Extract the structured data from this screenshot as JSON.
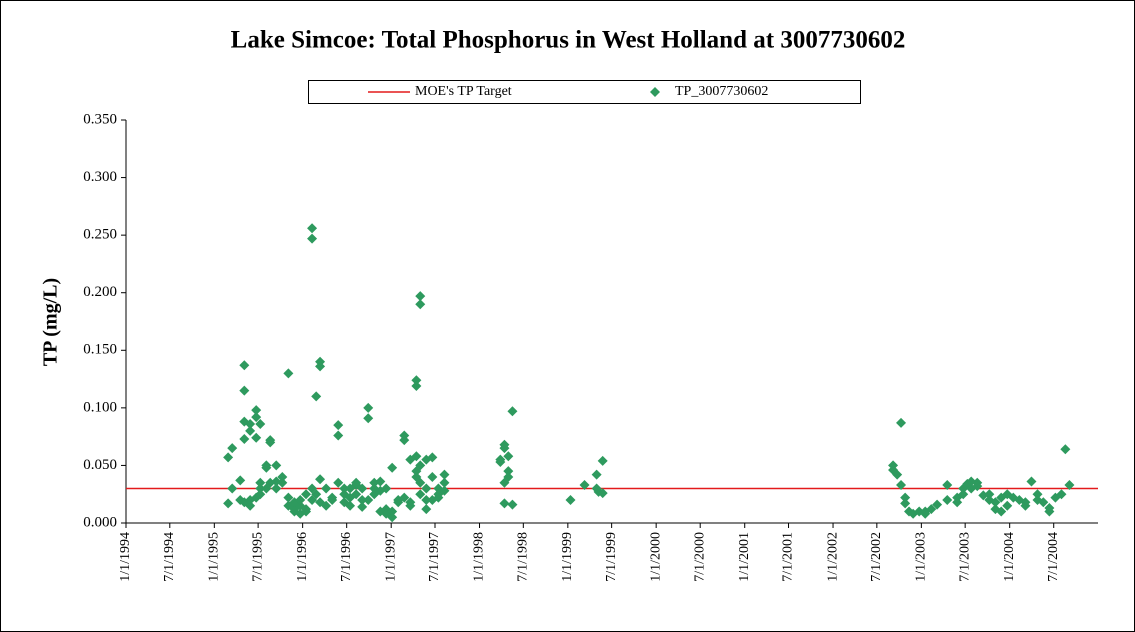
{
  "chart_data": {
    "type": "scatter",
    "title": "Lake Simcoe: Total Phosphorus in West Holland at 3007730602",
    "ylabel": "TP (mg/L)",
    "xlim": [
      "1994-01-01",
      "2004-12-31"
    ],
    "xticks": [
      {
        "value": "1994-01-01",
        "label": "1/1/1994"
      },
      {
        "value": "1994-07-01",
        "label": "7/1/1994"
      },
      {
        "value": "1995-01-01",
        "label": "1/1/1995"
      },
      {
        "value": "1995-07-01",
        "label": "7/1/1995"
      },
      {
        "value": "1996-01-01",
        "label": "1/1/1996"
      },
      {
        "value": "1996-07-01",
        "label": "7/1/1996"
      },
      {
        "value": "1997-01-01",
        "label": "1/1/1997"
      },
      {
        "value": "1997-07-01",
        "label": "7/1/1997"
      },
      {
        "value": "1998-01-01",
        "label": "1/1/1998"
      },
      {
        "value": "1998-07-01",
        "label": "7/1/1998"
      },
      {
        "value": "1999-01-01",
        "label": "1/1/1999"
      },
      {
        "value": "1999-07-01",
        "label": "7/1/1999"
      },
      {
        "value": "2000-01-01",
        "label": "1/1/2000"
      },
      {
        "value": "2000-07-01",
        "label": "7/1/2000"
      },
      {
        "value": "2001-01-01",
        "label": "1/1/2001"
      },
      {
        "value": "2001-07-01",
        "label": "7/1/2001"
      },
      {
        "value": "2002-01-01",
        "label": "1/1/2002"
      },
      {
        "value": "2002-07-01",
        "label": "7/1/2002"
      },
      {
        "value": "2003-01-01",
        "label": "1/1/2003"
      },
      {
        "value": "2003-07-01",
        "label": "7/1/2003"
      },
      {
        "value": "2004-01-01",
        "label": "1/1/2004"
      },
      {
        "value": "2004-07-01",
        "label": "7/1/2004"
      }
    ],
    "ylim": [
      0,
      0.35
    ],
    "yticks": [
      {
        "value": 0,
        "label": "0.000"
      },
      {
        "value": 0.05,
        "label": "0.050"
      },
      {
        "value": 0.1,
        "label": "0.100"
      },
      {
        "value": 0.15,
        "label": "0.150"
      },
      {
        "value": 0.2,
        "label": "0.200"
      },
      {
        "value": 0.25,
        "label": "0.250"
      },
      {
        "value": 0.3,
        "label": "0.300"
      },
      {
        "value": 0.35,
        "label": "0.350"
      }
    ],
    "reference_line": {
      "name": "MOE's TP Target",
      "color": "#e31a1c",
      "value": 0.03
    },
    "series": [
      {
        "name": "TP_3007730602",
        "color": "#2e9a5e",
        "x": [
          "1995-02-27",
          "1995-02-27",
          "1995-03-16",
          "1995-03-16",
          "1995-04-18",
          "1995-04-18",
          "1995-05-05",
          "1995-05-05",
          "1995-05-05",
          "1995-05-05",
          "1995-05-05",
          "1995-05-29",
          "1995-05-29",
          "1995-05-29",
          "1995-05-29",
          "1995-06-23",
          "1995-06-23",
          "1995-06-23",
          "1995-06-23",
          "1995-07-10",
          "1995-07-10",
          "1995-07-10",
          "1995-07-10",
          "1995-08-04",
          "1995-08-04",
          "1995-08-04",
          "1995-08-20",
          "1995-08-20",
          "1995-08-20",
          "1995-09-14",
          "1995-09-14",
          "1995-09-14",
          "1995-10-09",
          "1995-10-09",
          "1995-11-03",
          "1995-11-03",
          "1995-11-03",
          "1995-11-28",
          "1995-11-28",
          "1995-11-28",
          "1995-12-22",
          "1995-12-22",
          "1995-12-22",
          "1996-01-15",
          "1996-01-15",
          "1996-01-15",
          "1996-02-09",
          "1996-02-09",
          "1996-02-09",
          "1996-02-09",
          "1996-02-26",
          "1996-02-26",
          "1996-03-13",
          "1996-03-13",
          "1996-03-13",
          "1996-03-13",
          "1996-04-07",
          "1996-04-07",
          "1996-05-02",
          "1996-05-02",
          "1996-05-27",
          "1996-05-27",
          "1996-05-27",
          "1996-06-21",
          "1996-06-21",
          "1996-06-21",
          "1996-07-15",
          "1996-07-15",
          "1996-07-15",
          "1996-08-09",
          "1996-08-09",
          "1996-08-09",
          "1996-09-03",
          "1996-09-03",
          "1996-09-03",
          "1996-09-28",
          "1996-09-28",
          "1996-09-28",
          "1996-10-23",
          "1996-10-23",
          "1996-10-23",
          "1996-11-17",
          "1996-11-17",
          "1996-11-17",
          "1996-12-11",
          "1996-12-11",
          "1996-12-11",
          "1997-01-05",
          "1997-01-05",
          "1997-01-05",
          "1997-01-30",
          "1997-01-30",
          "1997-02-24",
          "1997-02-24",
          "1997-02-24",
          "1997-03-21",
          "1997-03-21",
          "1997-03-21",
          "1997-04-15",
          "1997-04-15",
          "1997-04-15",
          "1997-04-15",
          "1997-04-15",
          "1997-05-01",
          "1997-05-01",
          "1997-05-01",
          "1997-05-01",
          "1997-05-01",
          "1997-05-26",
          "1997-05-26",
          "1997-05-26",
          "1997-05-26",
          "1997-06-20",
          "1997-06-20",
          "1997-06-20",
          "1997-07-15",
          "1997-07-15",
          "1997-07-15",
          "1997-08-09",
          "1997-08-09",
          "1997-08-09",
          "1998-03-28",
          "1998-03-28",
          "1998-04-14",
          "1998-04-14",
          "1998-04-14",
          "1998-04-14",
          "1998-04-30",
          "1998-04-30",
          "1998-04-30",
          "1998-05-17",
          "1998-05-17",
          "1999-01-12",
          "1999-03-11",
          "1999-04-30",
          "1999-04-30",
          "1999-05-08",
          "1999-05-25",
          "1999-05-25",
          "2002-09-06",
          "2002-09-06",
          "2002-09-23",
          "2002-10-09",
          "2002-10-09",
          "2002-10-26",
          "2002-10-26",
          "2002-11-11",
          "2002-11-28",
          "2002-12-23",
          "2003-01-17",
          "2003-01-17",
          "2003-02-11",
          "2003-03-07",
          "2003-04-18",
          "2003-04-18",
          "2003-05-29",
          "2003-05-29",
          "2003-06-23",
          "2003-06-23",
          "2003-07-10",
          "2003-07-26",
          "2003-07-26",
          "2003-08-20",
          "2003-08-20",
          "2003-09-14",
          "2003-10-09",
          "2003-10-09",
          "2003-11-03",
          "2003-11-03",
          "2003-11-27",
          "2003-11-27",
          "2003-12-22",
          "2003-12-22",
          "2004-01-16",
          "2004-02-10",
          "2004-03-06",
          "2004-03-06",
          "2004-03-31",
          "2004-04-25",
          "2004-04-25",
          "2004-05-19",
          "2004-06-13",
          "2004-06-13",
          "2004-07-08",
          "2004-08-02",
          "2004-08-18",
          "2004-09-04"
        ],
        "values": [
          0.017,
          0.057,
          0.065,
          0.03,
          0.02,
          0.037,
          0.088,
          0.073,
          0.137,
          0.115,
          0.018,
          0.08,
          0.086,
          0.015,
          0.02,
          0.074,
          0.092,
          0.098,
          0.022,
          0.086,
          0.03,
          0.035,
          0.025,
          0.05,
          0.048,
          0.03,
          0.072,
          0.07,
          0.035,
          0.05,
          0.03,
          0.036,
          0.035,
          0.04,
          0.13,
          0.022,
          0.015,
          0.01,
          0.012,
          0.018,
          0.015,
          0.02,
          0.008,
          0.025,
          0.012,
          0.01,
          0.256,
          0.247,
          0.03,
          0.02,
          0.11,
          0.025,
          0.14,
          0.136,
          0.038,
          0.018,
          0.03,
          0.015,
          0.022,
          0.02,
          0.076,
          0.035,
          0.085,
          0.03,
          0.018,
          0.025,
          0.03,
          0.022,
          0.015,
          0.033,
          0.025,
          0.035,
          0.03,
          0.02,
          0.014,
          0.1,
          0.091,
          0.02,
          0.025,
          0.03,
          0.035,
          0.036,
          0.01,
          0.028,
          0.012,
          0.008,
          0.03,
          0.005,
          0.048,
          0.01,
          0.02,
          0.018,
          0.076,
          0.072,
          0.022,
          0.055,
          0.018,
          0.015,
          0.124,
          0.119,
          0.04,
          0.045,
          0.058,
          0.197,
          0.19,
          0.05,
          0.035,
          0.025,
          0.055,
          0.012,
          0.03,
          0.02,
          0.057,
          0.04,
          0.02,
          0.03,
          0.025,
          0.022,
          0.042,
          0.035,
          0.028,
          0.053,
          0.055,
          0.068,
          0.065,
          0.035,
          0.017,
          0.058,
          0.045,
          0.04,
          0.097,
          0.016,
          0.02,
          0.033,
          0.03,
          0.042,
          0.027,
          0.054,
          0.026,
          0.05,
          0.046,
          0.042,
          0.033,
          0.087,
          0.022,
          0.017,
          0.01,
          0.008,
          0.01,
          0.008,
          0.01,
          0.012,
          0.016,
          0.033,
          0.02,
          0.018,
          0.022,
          0.03,
          0.025,
          0.034,
          0.03,
          0.036,
          0.035,
          0.032,
          0.024,
          0.02,
          0.025,
          0.012,
          0.018,
          0.01,
          0.022,
          0.025,
          0.015,
          0.022,
          0.02,
          0.015,
          0.018,
          0.036,
          0.025,
          0.02,
          0.018,
          0.01,
          0.013,
          0.022,
          0.025,
          0.064,
          0.033
        ]
      }
    ]
  }
}
